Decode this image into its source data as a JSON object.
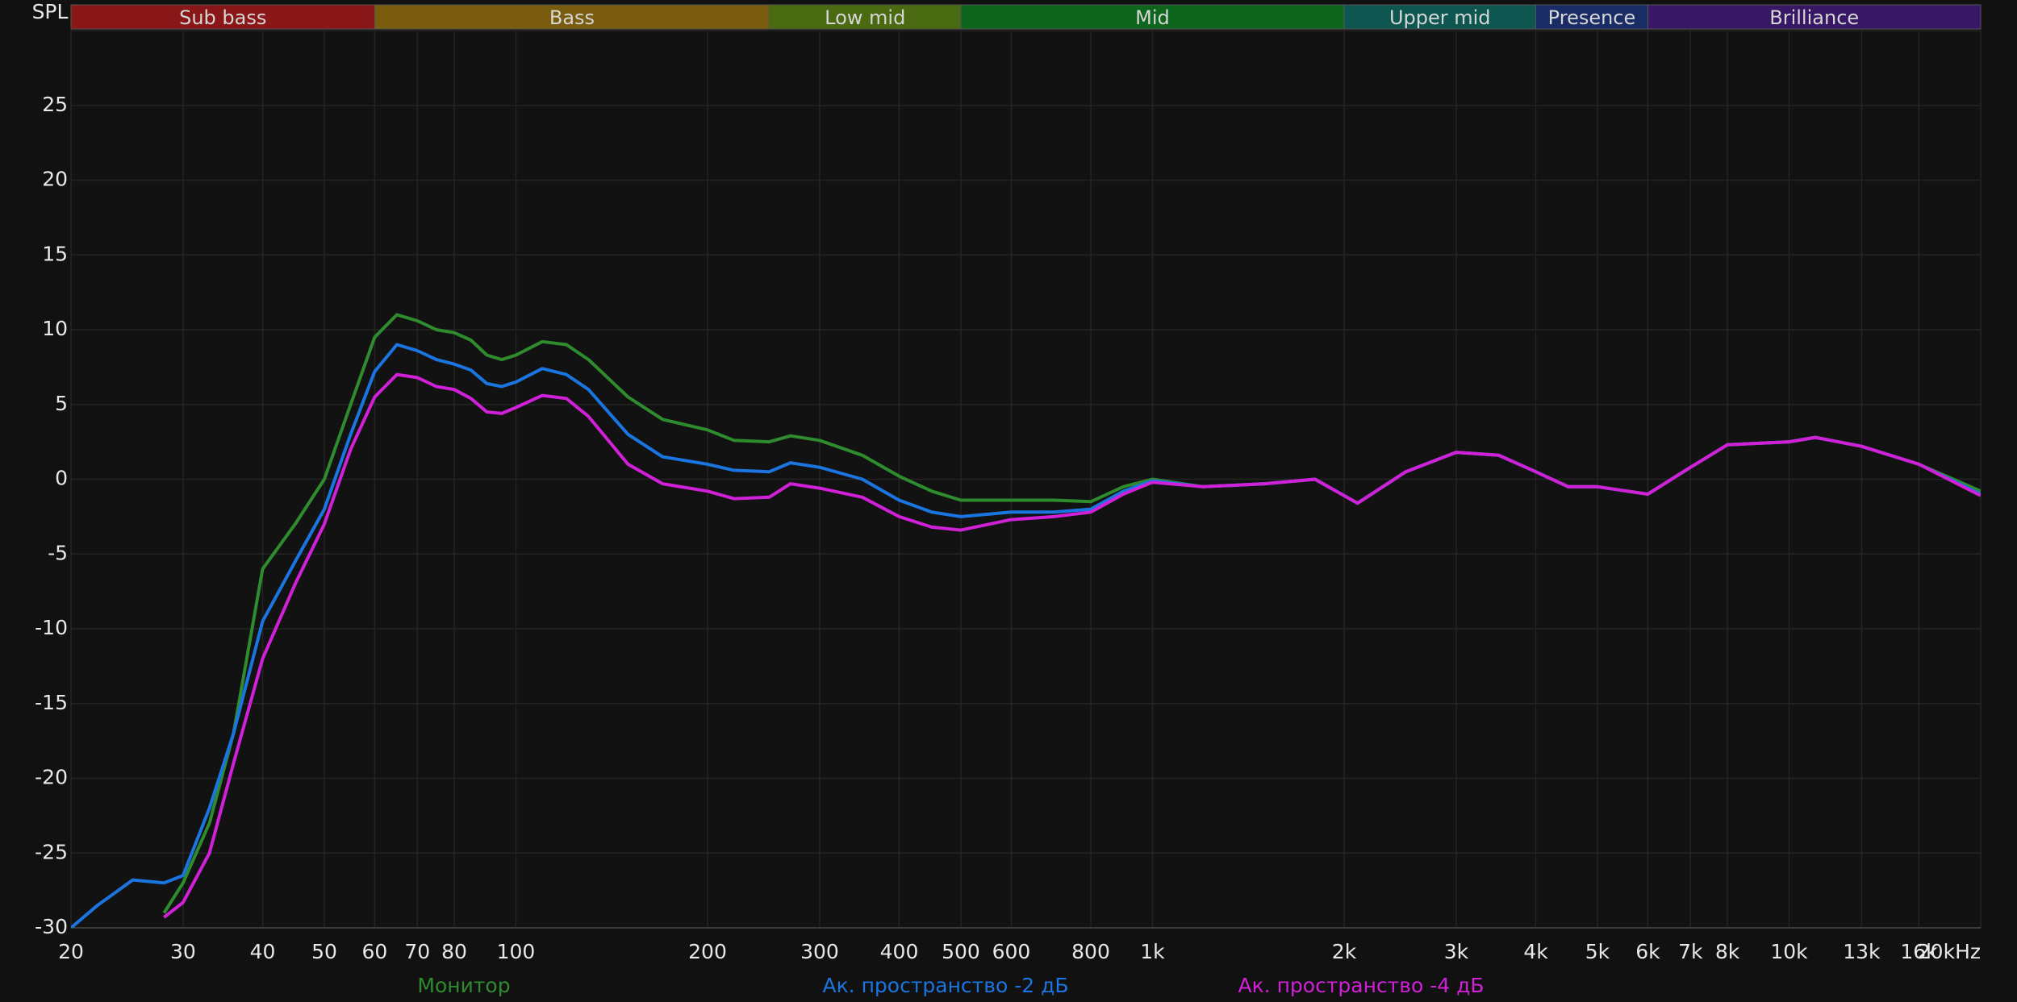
{
  "chart_data": {
    "type": "line",
    "y_label": "SPL",
    "xscale": "log",
    "xlim": [
      20,
      20000
    ],
    "ylim": [
      -30,
      30
    ],
    "grid": true,
    "xticks": [
      20,
      30,
      40,
      50,
      60,
      70,
      80,
      100,
      200,
      300,
      400,
      500,
      600,
      800,
      {
        "value": 1000,
        "label": "1k"
      },
      {
        "value": 2000,
        "label": "2k"
      },
      {
        "value": 3000,
        "label": "3k"
      },
      {
        "value": 4000,
        "label": "4k"
      },
      {
        "value": 5000,
        "label": "5k"
      },
      {
        "value": 6000,
        "label": "6k"
      },
      {
        "value": 7000,
        "label": "7k"
      },
      {
        "value": 8000,
        "label": "8k"
      },
      {
        "value": 10000,
        "label": "10k"
      },
      {
        "value": 13000,
        "label": "13k"
      },
      {
        "value": 16000,
        "label": "16k"
      },
      {
        "value": 20000,
        "label": "20kHz"
      }
    ],
    "yticks": [
      -30,
      -25,
      -20,
      -15,
      -10,
      -5,
      0,
      5,
      10,
      15,
      20,
      25
    ],
    "bands": [
      {
        "name": "Sub bass",
        "from": 20,
        "to": 60,
        "color": "#8a1717"
      },
      {
        "name": "Bass",
        "from": 60,
        "to": 250,
        "color": "#7a5c0e"
      },
      {
        "name": "Low mid",
        "from": 250,
        "to": 500,
        "color": "#4a6a12"
      },
      {
        "name": "Mid",
        "from": 500,
        "to": 2000,
        "color": "#0e661e"
      },
      {
        "name": "Upper mid",
        "from": 2000,
        "to": 4000,
        "color": "#0e5650"
      },
      {
        "name": "Presence",
        "from": 4000,
        "to": 6000,
        "color": "#192c66"
      },
      {
        "name": "Brilliance",
        "from": 6000,
        "to": 20000,
        "color": "#381866"
      }
    ],
    "x": [
      20,
      22,
      25,
      28,
      30,
      33,
      36,
      40,
      45,
      50,
      55,
      60,
      65,
      70,
      75,
      80,
      85,
      90,
      95,
      100,
      110,
      120,
      130,
      150,
      170,
      200,
      220,
      250,
      270,
      300,
      350,
      400,
      450,
      500,
      600,
      700,
      800,
      900,
      1000,
      1200,
      1500,
      1800,
      2100,
      2500,
      3000,
      3500,
      4000,
      4500,
      5000,
      6000,
      7000,
      8000,
      10000,
      11000,
      13000,
      16000,
      20000
    ],
    "series": [
      {
        "name": "Монитор",
        "color": "#2e8b2e",
        "values": [
          null,
          null,
          null,
          -29,
          -27,
          -23,
          -17,
          -6,
          -3,
          0,
          5,
          9.5,
          11,
          10.6,
          10,
          9.8,
          9.3,
          8.3,
          8,
          8.3,
          9.2,
          9,
          8,
          5.5,
          4,
          3.3,
          2.6,
          2.5,
          2.9,
          2.6,
          1.6,
          0.2,
          -0.8,
          -1.4,
          -1.4,
          -1.4,
          -1.5,
          -0.5,
          0,
          -0.5,
          -0.3,
          0,
          -1.6,
          0.5,
          1.8,
          1.6,
          0.5,
          -0.5,
          -0.5,
          -1,
          0.8,
          2.3,
          2.5,
          2.8,
          2.2,
          1,
          -0.8
        ]
      },
      {
        "name": "Ак. пространство -2 дБ",
        "color": "#1a75e0",
        "values": [
          -30,
          -28.5,
          -26.8,
          -27,
          -26.5,
          -22,
          -17,
          -9.5,
          -5.5,
          -2,
          3,
          7.2,
          9,
          8.6,
          8,
          7.7,
          7.3,
          6.4,
          6.2,
          6.5,
          7.4,
          7,
          6,
          3,
          1.5,
          1,
          0.6,
          0.5,
          1.1,
          0.8,
          0,
          -1.4,
          -2.2,
          -2.5,
          -2.2,
          -2.2,
          -2,
          -0.8,
          -0.1,
          -0.5,
          -0.3,
          0,
          -1.6,
          0.5,
          1.8,
          1.6,
          0.5,
          -0.5,
          -0.5,
          -1,
          0.8,
          2.3,
          2.5,
          2.8,
          2.2,
          1,
          -1
        ]
      },
      {
        "name": "Ак. пространство -4 дБ",
        "color": "#d020d8",
        "values": [
          null,
          null,
          null,
          -29.3,
          -28.3,
          -25,
          -19,
          -12,
          -7,
          -3,
          2,
          5.5,
          7,
          6.8,
          6.2,
          6,
          5.4,
          4.5,
          4.4,
          4.8,
          5.6,
          5.4,
          4.2,
          1,
          -0.3,
          -0.8,
          -1.3,
          -1.2,
          -0.3,
          -0.6,
          -1.2,
          -2.5,
          -3.2,
          -3.4,
          -2.7,
          -2.5,
          -2.2,
          -1,
          -0.2,
          -0.5,
          -0.3,
          0,
          -1.6,
          0.5,
          1.8,
          1.6,
          0.5,
          -0.5,
          -0.5,
          -1,
          0.8,
          2.3,
          2.5,
          2.8,
          2.2,
          1,
          -1.1
        ]
      }
    ]
  }
}
